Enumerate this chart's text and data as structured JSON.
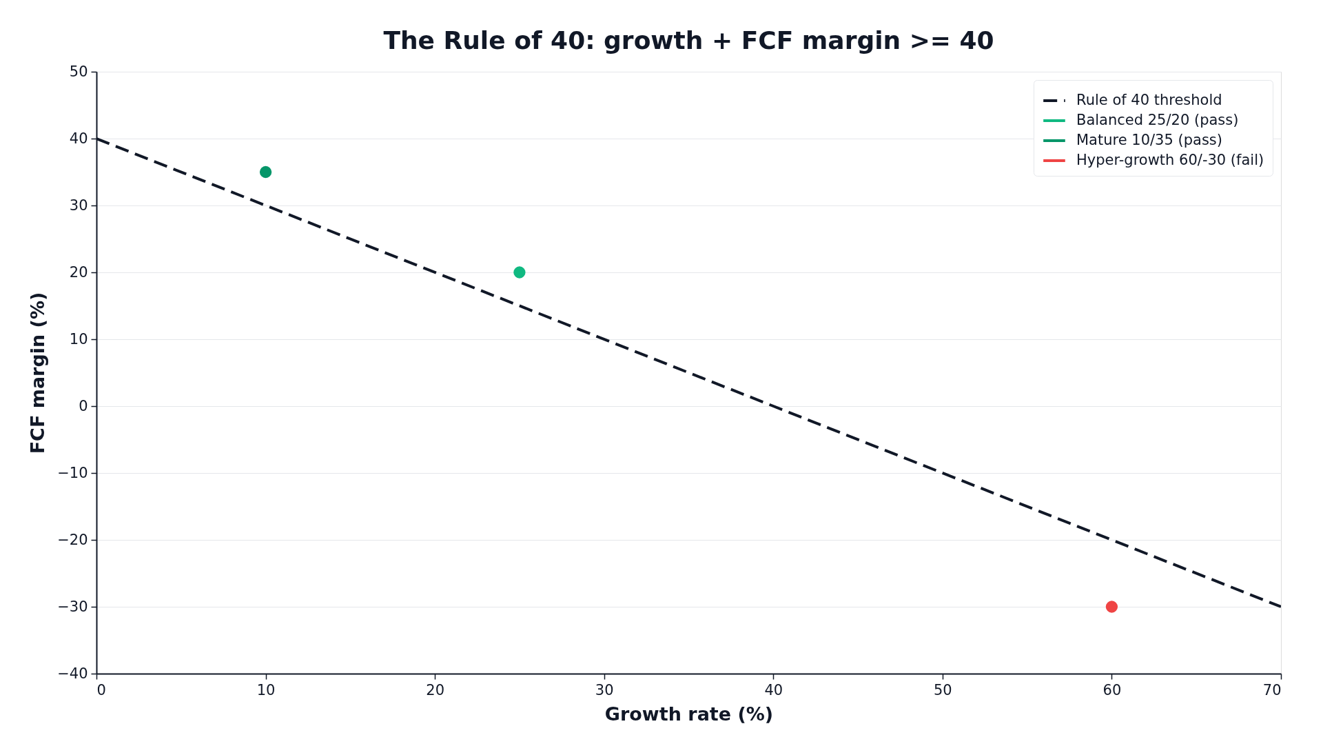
{
  "chart_data": {
    "type": "scatter",
    "title": "The Rule of 40: growth + FCF margin >= 40",
    "xlabel": "Growth rate (%)",
    "ylabel": "FCF margin (%)",
    "xlim": [
      0,
      70
    ],
    "ylim": [
      -40,
      50
    ],
    "xticks": [
      0,
      10,
      20,
      30,
      40,
      50,
      60,
      70
    ],
    "yticks": [
      {
        "value": -40,
        "label": "−40"
      },
      {
        "value": -30,
        "label": "−30"
      },
      {
        "value": -20,
        "label": "−20"
      },
      {
        "value": -10,
        "label": "−10"
      },
      0,
      10,
      20,
      30,
      40,
      50
    ],
    "grid": "y",
    "legend": "top right",
    "series": [
      {
        "name": "Rule of 40 threshold",
        "type": "line",
        "line_style": "dashed",
        "color": "#111827",
        "x": [
          0,
          70
        ],
        "values": [
          40,
          -30
        ]
      },
      {
        "name": "Balanced 25/20 (pass)",
        "marker": "circle",
        "color": "#10b981",
        "x": [
          25
        ],
        "values": [
          20
        ]
      },
      {
        "name": "Mature 10/35 (pass)",
        "marker": "circle",
        "color": "#059669",
        "x": [
          10
        ],
        "values": [
          35
        ]
      },
      {
        "name": "Hyper-growth 60/-30 (fail)",
        "marker": "circle",
        "color": "#ef4444",
        "x": [
          60
        ],
        "values": [
          -30
        ]
      }
    ]
  }
}
